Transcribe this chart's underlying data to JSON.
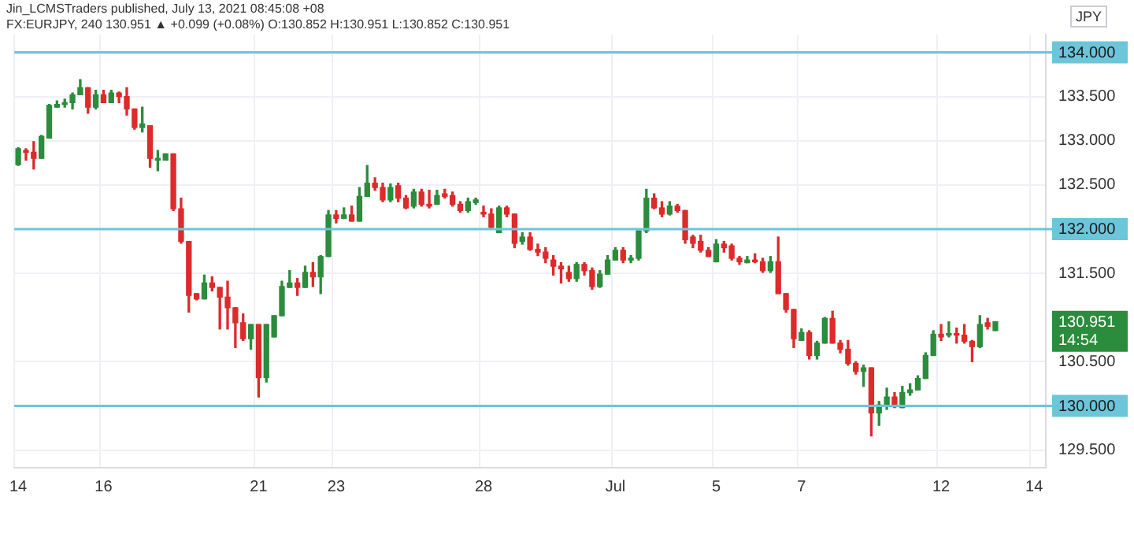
{
  "chart_data": {
    "type": "candlestick",
    "title": "Jin_LCMSTraders published, July 13, 2021 08:45:08 +08",
    "subtitle": "FX:EURJPY, 240 130.951 ▲ +0.099 (+0.08%) O:130.852 H:130.951 L:130.852 C:130.951",
    "ylabel": "JPY",
    "categories": [
      "14",
      null,
      null,
      null,
      null,
      null,
      null,
      null,
      null,
      null,
      null,
      "16",
      null,
      null,
      null,
      null,
      null,
      null,
      null,
      null,
      null,
      null,
      null,
      null,
      null,
      null,
      null,
      null,
      null,
      null,
      null,
      "21",
      null,
      null,
      null,
      null,
      null,
      null,
      null,
      null,
      null,
      "23",
      null,
      null,
      null,
      null,
      null,
      null,
      null,
      null,
      null,
      null,
      null,
      null,
      null,
      null,
      null,
      null,
      null,
      null,
      "28",
      null,
      null,
      null,
      null,
      null,
      null,
      null,
      null,
      null,
      null,
      null,
      null,
      null,
      null,
      null,
      null,
      "Jul",
      null,
      null,
      null,
      null,
      null,
      null,
      null,
      null,
      null,
      null,
      null,
      null,
      "5",
      null,
      null,
      null,
      null,
      null,
      null,
      null,
      null,
      null,
      null,
      "7",
      null,
      null,
      null,
      null,
      null,
      null,
      null,
      null,
      null,
      null,
      null,
      null,
      null,
      null,
      null,
      null,
      null,
      "12",
      null,
      null,
      null,
      null,
      null,
      null,
      null,
      null,
      null,
      null,
      null,
      "14",
      null
    ],
    "ohlc": [
      [
        132.73,
        132.92,
        132.72,
        132.91
      ],
      [
        132.89,
        132.91,
        132.78,
        132.87
      ],
      [
        132.87,
        132.99,
        132.68,
        132.8
      ],
      [
        132.8,
        133.06,
        132.8,
        133.05
      ],
      [
        133.03,
        133.41,
        133.03,
        133.4
      ],
      [
        133.38,
        133.45,
        133.38,
        133.41
      ],
      [
        133.41,
        133.47,
        133.38,
        133.43
      ],
      [
        133.43,
        133.54,
        133.36,
        133.52
      ],
      [
        133.52,
        133.69,
        133.52,
        133.6
      ],
      [
        133.6,
        133.6,
        133.31,
        133.38
      ],
      [
        133.38,
        133.57,
        133.36,
        133.52
      ],
      [
        133.52,
        133.57,
        133.43,
        133.43
      ],
      [
        133.43,
        133.57,
        133.43,
        133.54
      ],
      [
        133.54,
        133.55,
        133.43,
        133.5
      ],
      [
        133.5,
        133.6,
        133.29,
        133.36
      ],
      [
        133.36,
        133.36,
        133.13,
        133.15
      ],
      [
        133.15,
        133.38,
        133.1,
        133.19
      ],
      [
        133.17,
        133.17,
        132.7,
        132.8
      ],
      [
        132.78,
        132.89,
        132.66,
        132.8
      ],
      [
        132.78,
        132.85,
        132.78,
        132.85
      ],
      [
        132.85,
        132.85,
        132.21,
        132.23
      ],
      [
        132.23,
        132.35,
        131.84,
        131.86
      ],
      [
        131.86,
        131.86,
        131.06,
        131.25
      ],
      [
        131.27,
        131.27,
        131.2,
        131.21
      ],
      [
        131.21,
        131.48,
        131.21,
        131.39
      ],
      [
        131.39,
        131.46,
        131.3,
        131.34
      ],
      [
        131.34,
        131.34,
        130.87,
        131.23
      ],
      [
        131.23,
        131.41,
        130.87,
        131.11
      ],
      [
        131.11,
        131.11,
        130.66,
        130.94
      ],
      [
        130.94,
        131.04,
        130.74,
        130.76
      ],
      [
        130.76,
        130.92,
        130.64,
        130.92
      ],
      [
        130.92,
        130.92,
        130.1,
        130.32
      ],
      [
        130.32,
        130.92,
        130.27,
        130.92
      ],
      [
        130.78,
        131.02,
        130.78,
        131.02
      ],
      [
        131.02,
        131.41,
        131.02,
        131.35
      ],
      [
        131.34,
        131.53,
        131.34,
        131.39
      ],
      [
        131.39,
        131.44,
        131.25,
        131.34
      ],
      [
        131.34,
        131.58,
        131.34,
        131.51
      ],
      [
        131.51,
        131.62,
        131.35,
        131.46
      ],
      [
        131.46,
        131.7,
        131.27,
        131.69
      ],
      [
        131.69,
        132.21,
        131.69,
        132.16
      ],
      [
        132.16,
        132.21,
        132.07,
        132.12
      ],
      [
        132.12,
        132.24,
        132.12,
        132.16
      ],
      [
        132.16,
        132.26,
        132.09,
        132.09
      ],
      [
        132.09,
        132.47,
        132.09,
        132.37
      ],
      [
        132.37,
        132.72,
        132.37,
        132.52
      ],
      [
        132.52,
        132.58,
        132.44,
        132.47
      ],
      [
        132.47,
        132.52,
        132.31,
        132.33
      ],
      [
        132.33,
        132.51,
        132.31,
        132.47
      ],
      [
        132.49,
        132.52,
        132.31,
        132.35
      ],
      [
        132.35,
        132.38,
        132.23,
        132.24
      ],
      [
        132.26,
        132.45,
        132.24,
        132.42
      ],
      [
        132.42,
        132.45,
        132.26,
        132.28
      ],
      [
        132.28,
        132.44,
        132.24,
        132.26
      ],
      [
        132.28,
        132.44,
        132.28,
        132.38
      ],
      [
        132.4,
        132.45,
        132.35,
        132.37
      ],
      [
        132.38,
        132.42,
        132.26,
        132.28
      ],
      [
        132.28,
        132.31,
        132.19,
        132.21
      ],
      [
        132.21,
        132.35,
        132.19,
        132.31
      ],
      [
        132.3,
        132.35,
        132.28,
        132.33
      ],
      [
        132.19,
        132.26,
        132.14,
        132.17
      ],
      [
        132.17,
        132.23,
        132.0,
        132.02
      ],
      [
        131.96,
        132.26,
        131.96,
        132.24
      ],
      [
        132.24,
        132.26,
        132.14,
        132.17
      ],
      [
        132.17,
        132.17,
        131.79,
        131.84
      ],
      [
        131.86,
        131.96,
        131.83,
        131.91
      ],
      [
        131.91,
        131.96,
        131.76,
        131.77
      ],
      [
        131.77,
        131.83,
        131.7,
        131.74
      ],
      [
        131.74,
        131.79,
        131.62,
        131.67
      ],
      [
        131.65,
        131.7,
        131.48,
        131.58
      ],
      [
        131.58,
        131.62,
        131.39,
        131.55
      ],
      [
        131.51,
        131.58,
        131.41,
        131.44
      ],
      [
        131.44,
        131.62,
        131.41,
        131.6
      ],
      [
        131.6,
        131.62,
        131.48,
        131.53
      ],
      [
        131.53,
        131.56,
        131.32,
        131.35
      ],
      [
        131.35,
        131.53,
        131.34,
        131.49
      ],
      [
        131.49,
        131.7,
        131.49,
        131.65
      ],
      [
        131.65,
        131.79,
        131.65,
        131.76
      ],
      [
        131.76,
        131.79,
        131.62,
        131.65
      ],
      [
        131.65,
        131.7,
        131.62,
        131.67
      ],
      [
        131.67,
        131.98,
        131.65,
        131.98
      ],
      [
        131.98,
        132.45,
        131.96,
        132.35
      ],
      [
        132.35,
        132.4,
        132.23,
        132.24
      ],
      [
        132.24,
        132.31,
        132.14,
        132.17
      ],
      [
        132.17,
        132.31,
        132.16,
        132.26
      ],
      [
        132.26,
        132.28,
        132.19,
        132.21
      ],
      [
        132.21,
        132.21,
        131.84,
        131.88
      ],
      [
        131.91,
        131.93,
        131.79,
        131.84
      ],
      [
        131.86,
        131.93,
        131.74,
        131.76
      ],
      [
        131.76,
        131.79,
        131.69,
        131.69
      ],
      [
        131.63,
        131.88,
        131.63,
        131.83
      ],
      [
        131.83,
        131.86,
        131.74,
        131.79
      ],
      [
        131.81,
        131.83,
        131.65,
        131.67
      ],
      [
        131.67,
        131.69,
        131.6,
        131.63
      ],
      [
        131.62,
        131.69,
        131.62,
        131.65
      ],
      [
        131.65,
        131.72,
        131.62,
        131.63
      ],
      [
        131.63,
        131.67,
        131.51,
        131.53
      ],
      [
        131.53,
        131.69,
        131.51,
        131.63
      ],
      [
        131.63,
        131.91,
        131.27,
        131.27
      ],
      [
        131.27,
        131.27,
        131.06,
        131.09
      ],
      [
        131.09,
        131.09,
        130.66,
        130.76
      ],
      [
        130.74,
        130.87,
        130.74,
        130.83
      ],
      [
        130.83,
        130.85,
        130.53,
        130.57
      ],
      [
        130.57,
        130.73,
        130.53,
        130.71
      ],
      [
        130.71,
        131.0,
        130.71,
        130.99
      ],
      [
        130.99,
        131.07,
        130.71,
        130.71
      ],
      [
        130.71,
        130.74,
        130.6,
        130.64
      ],
      [
        130.64,
        130.74,
        130.46,
        130.48
      ],
      [
        130.48,
        130.5,
        130.36,
        130.39
      ],
      [
        130.39,
        130.46,
        130.22,
        130.43
      ],
      [
        130.43,
        130.43,
        129.66,
        129.92
      ],
      [
        129.92,
        130.05,
        129.78,
        130.01
      ],
      [
        130.01,
        130.2,
        129.96,
        130.1
      ],
      [
        130.1,
        130.15,
        129.98,
        129.99
      ],
      [
        129.98,
        130.22,
        129.98,
        130.15
      ],
      [
        130.15,
        130.25,
        130.12,
        130.18
      ],
      [
        130.18,
        130.34,
        130.18,
        130.31
      ],
      [
        130.31,
        130.6,
        130.31,
        130.57
      ],
      [
        130.57,
        130.85,
        130.57,
        130.81
      ],
      [
        130.81,
        130.92,
        130.74,
        130.78
      ],
      [
        130.8,
        130.95,
        130.78,
        130.81
      ],
      [
        130.81,
        130.88,
        130.71,
        130.8
      ],
      [
        130.8,
        130.92,
        130.71,
        130.73
      ],
      [
        130.73,
        130.74,
        130.5,
        130.67
      ],
      [
        130.67,
        131.02,
        130.66,
        130.92
      ],
      [
        130.94,
        130.99,
        130.87,
        130.9
      ],
      [
        130.852,
        130.951,
        130.852,
        130.951
      ],
      null,
      null,
      null,
      null,
      null,
      null
    ],
    "colors": [
      "#2a8c3c",
      "#dd2a2a",
      "#dd2a2a",
      "#2a8c3c",
      "#2a8c3c",
      "#2a8c3c",
      "#2a8c3c",
      "#2a8c3c",
      "#2a8c3c",
      "#dd2a2a",
      "#2a8c3c",
      "#dd2a2a",
      "#2a8c3c",
      "#dd2a2a",
      "#dd2a2a",
      "#dd2a2a",
      "#2a8c3c",
      "#dd2a2a",
      "#2a8c3c",
      "#2a8c3c",
      "#dd2a2a",
      "#dd2a2a",
      "#dd2a2a",
      "#dd2a2a",
      "#2a8c3c",
      "#dd2a2a",
      "#dd2a2a",
      "#dd2a2a",
      "#dd2a2a",
      "#dd2a2a",
      "#2a8c3c",
      "#dd2a2a",
      "#2a8c3c",
      "#2a8c3c",
      "#2a8c3c",
      "#2a8c3c",
      "#dd2a2a",
      "#2a8c3c",
      "#dd2a2a",
      "#2a8c3c",
      "#2a8c3c",
      "#dd2a2a",
      "#2a8c3c",
      "#dd2a2a",
      "#2a8c3c",
      "#2a8c3c",
      "#dd2a2a",
      "#dd2a2a",
      "#2a8c3c",
      "#dd2a2a",
      "#dd2a2a",
      "#2a8c3c",
      "#dd2a2a",
      "#dd2a2a",
      "#2a8c3c",
      "#dd2a2a",
      "#dd2a2a",
      "#dd2a2a",
      "#2a8c3c",
      "#2a8c3c",
      "#dd2a2a",
      "#dd2a2a",
      "#2a8c3c",
      "#dd2a2a",
      "#dd2a2a",
      "#2a8c3c",
      "#dd2a2a",
      "#dd2a2a",
      "#dd2a2a",
      "#dd2a2a",
      "#dd2a2a",
      "#dd2a2a",
      "#2a8c3c",
      "#dd2a2a",
      "#dd2a2a",
      "#2a8c3c",
      "#2a8c3c",
      "#2a8c3c",
      "#dd2a2a",
      "#2a8c3c",
      "#2a8c3c",
      "#2a8c3c",
      "#dd2a2a",
      "#dd2a2a",
      "#2a8c3c",
      "#dd2a2a",
      "#dd2a2a",
      "#dd2a2a",
      "#dd2a2a",
      "#dd2a2a",
      "#2a8c3c",
      "#dd2a2a",
      "#dd2a2a",
      "#dd2a2a",
      "#2a8c3c",
      "#dd2a2a",
      "#dd2a2a",
      "#2a8c3c",
      "#dd2a2a",
      "#dd2a2a",
      "#dd2a2a",
      "#2a8c3c",
      "#dd2a2a",
      "#2a8c3c",
      "#2a8c3c",
      "#dd2a2a",
      "#dd2a2a",
      "#dd2a2a",
      "#dd2a2a",
      "#2a8c3c",
      "#dd2a2a",
      "#2a8c3c",
      "#2a8c3c",
      "#dd2a2a",
      "#2a8c3c",
      "#2a8c3c",
      "#2a8c3c",
      "#2a8c3c",
      "#2a8c3c",
      "#dd2a2a",
      "#2a8c3c",
      "#dd2a2a",
      "#dd2a2a",
      "#dd2a2a",
      "#2a8c3c",
      "#dd2a2a",
      "#2a8c3c",
      null,
      null,
      null,
      null,
      null,
      null
    ],
    "ylim": [
      129.3,
      134.2
    ],
    "yticks": [
      {
        "value": 129.5,
        "label": "129.500"
      },
      {
        "value": 130.5,
        "label": "130.500"
      },
      {
        "value": 131.5,
        "label": "131.500"
      },
      {
        "value": 132.5,
        "label": "132.500"
      },
      {
        "value": 133,
        "label": "133.000"
      },
      {
        "value": 133.5,
        "label": "133.500"
      }
    ],
    "ref_lines": [
      {
        "axis": "y",
        "value": 134,
        "label": "134.000",
        "color": "#6cc5d9"
      },
      {
        "axis": "y",
        "value": 132,
        "label": "132.000",
        "color": "#6cc5d9"
      },
      {
        "axis": "y",
        "value": 130,
        "label": "130.000",
        "color": "#6cc5d9"
      }
    ],
    "annotations": [
      "130.951",
      "14:54"
    ],
    "grid": true
  }
}
